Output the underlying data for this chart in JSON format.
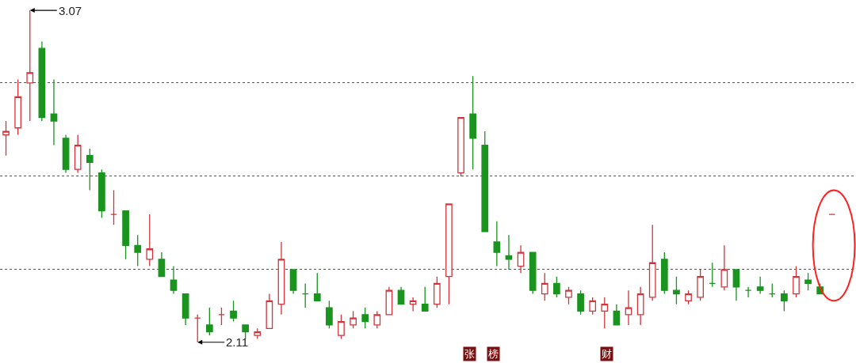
{
  "chart_data": {
    "type": "candlestick",
    "categories": [
      null,
      null,
      null,
      null,
      null,
      null,
      null,
      null,
      null,
      null,
      null,
      null,
      null,
      null,
      null,
      null,
      null,
      null,
      null,
      null,
      null,
      null,
      null,
      null,
      null,
      null,
      null,
      null,
      null,
      null,
      null,
      null,
      null,
      null,
      null,
      null,
      null,
      null,
      null,
      null,
      null,
      null,
      null,
      null,
      null,
      null,
      null,
      null,
      null,
      null,
      null,
      null,
      null,
      null,
      null,
      null,
      null,
      null,
      null,
      null,
      null,
      null,
      null,
      null,
      null,
      null,
      null,
      null,
      null,
      null
    ],
    "ohlc": [
      [
        2.71,
        2.75,
        2.65,
        2.72
      ],
      [
        2.73,
        2.87,
        2.71,
        2.82
      ],
      [
        2.86,
        3.07,
        2.75,
        2.89
      ],
      [
        2.96,
        2.98,
        2.75,
        2.76
      ],
      [
        2.77,
        2.87,
        2.68,
        2.75
      ],
      [
        2.7,
        2.71,
        2.6,
        2.61
      ],
      [
        2.61,
        2.71,
        2.6,
        2.68
      ],
      [
        2.65,
        2.67,
        2.55,
        2.63
      ],
      [
        2.6,
        2.61,
        2.47,
        2.49
      ],
      [
        2.48,
        2.55,
        2.45,
        2.48
      ],
      [
        2.49,
        2.49,
        2.35,
        2.39
      ],
      [
        2.39,
        2.42,
        2.33,
        2.37
      ],
      [
        2.35,
        2.48,
        2.33,
        2.38
      ],
      [
        2.35,
        2.37,
        2.3,
        2.3
      ],
      [
        2.29,
        2.33,
        2.25,
        2.26
      ],
      [
        2.25,
        2.25,
        2.16,
        2.18
      ],
      [
        2.18,
        2.19,
        2.11,
        2.18
      ],
      [
        2.16,
        2.21,
        2.13,
        2.14
      ],
      [
        2.19,
        2.21,
        2.16,
        2.19
      ],
      [
        2.2,
        2.23,
        2.17,
        2.18
      ],
      [
        2.16,
        2.16,
        2.12,
        2.14
      ],
      [
        2.13,
        2.15,
        2.12,
        2.14
      ],
      [
        2.15,
        2.25,
        2.15,
        2.23
      ],
      [
        2.22,
        2.4,
        2.19,
        2.35
      ],
      [
        2.32,
        2.32,
        2.25,
        2.26
      ],
      [
        2.25,
        2.28,
        2.21,
        2.25
      ],
      [
        2.25,
        2.31,
        2.23,
        2.23
      ],
      [
        2.21,
        2.23,
        2.15,
        2.16
      ],
      [
        2.13,
        2.19,
        2.12,
        2.17
      ],
      [
        2.16,
        2.2,
        2.15,
        2.18
      ],
      [
        2.19,
        2.21,
        2.15,
        2.17
      ],
      [
        2.16,
        2.2,
        2.15,
        2.19
      ],
      [
        2.19,
        2.27,
        2.19,
        2.26
      ],
      [
        2.26,
        2.27,
        2.22,
        2.22
      ],
      [
        2.22,
        2.24,
        2.2,
        2.23
      ],
      [
        2.22,
        2.27,
        2.2,
        2.2
      ],
      [
        2.22,
        2.3,
        2.21,
        2.28
      ],
      [
        2.3,
        2.51,
        2.22,
        2.51
      ],
      [
        2.6,
        2.76,
        2.59,
        2.76
      ],
      [
        2.77,
        2.88,
        2.61,
        2.7
      ],
      [
        2.68,
        2.72,
        2.43,
        2.43
      ],
      [
        2.4,
        2.46,
        2.33,
        2.37
      ],
      [
        2.36,
        2.42,
        2.32,
        2.35
      ],
      [
        2.33,
        2.39,
        2.31,
        2.37
      ],
      [
        2.37,
        2.37,
        2.25,
        2.26
      ],
      [
        2.25,
        2.31,
        2.23,
        2.28
      ],
      [
        2.28,
        2.3,
        2.24,
        2.25
      ],
      [
        2.24,
        2.27,
        2.22,
        2.26
      ],
      [
        2.25,
        2.26,
        2.19,
        2.2
      ],
      [
        2.2,
        2.24,
        2.19,
        2.23
      ],
      [
        2.2,
        2.24,
        2.15,
        2.22
      ],
      [
        2.2,
        2.22,
        2.16,
        2.16
      ],
      [
        2.19,
        2.26,
        2.16,
        2.21
      ],
      [
        2.19,
        2.27,
        2.16,
        2.25
      ],
      [
        2.24,
        2.45,
        2.23,
        2.34
      ],
      [
        2.35,
        2.37,
        2.25,
        2.26
      ],
      [
        2.26,
        2.3,
        2.22,
        2.25
      ],
      [
        2.23,
        2.26,
        2.22,
        2.25
      ],
      [
        2.24,
        2.32,
        2.23,
        2.3
      ],
      [
        2.28,
        2.34,
        2.27,
        2.28
      ],
      [
        2.27,
        2.39,
        2.26,
        2.32
      ],
      [
        2.32,
        2.32,
        2.23,
        2.27
      ],
      [
        2.26,
        2.27,
        2.24,
        2.26
      ],
      [
        2.27,
        2.3,
        2.25,
        2.26
      ],
      [
        2.25,
        2.28,
        2.24,
        2.25
      ],
      [
        2.25,
        2.26,
        2.2,
        2.23
      ],
      [
        2.25,
        2.33,
        2.24,
        2.3
      ],
      [
        2.29,
        2.31,
        2.26,
        2.28
      ],
      [
        2.27,
        2.28,
        2.25,
        2.25
      ],
      [
        2.48,
        2.48,
        2.48,
        2.48
      ]
    ],
    "colors": [
      "#d4333b",
      "#d4333b",
      "#d4333b",
      "#1a941f",
      "#1a941f",
      "#1a941f",
      "#d4333b",
      "#1a941f",
      "#1a941f",
      "#d4333b",
      "#1a941f",
      "#1a941f",
      "#d4333b",
      "#1a941f",
      "#1a941f",
      "#1a941f",
      "#d4333b",
      "#1a941f",
      "#d4333b",
      "#1a941f",
      "#1a941f",
      "#d4333b",
      "#d4333b",
      "#d4333b",
      "#1a941f",
      "#1a941f",
      "#1a941f",
      "#1a941f",
      "#d4333b",
      "#d4333b",
      "#1a941f",
      "#d4333b",
      "#d4333b",
      "#1a941f",
      "#d4333b",
      "#1a941f",
      "#d4333b",
      "#d4333b",
      "#d4333b",
      "#1a941f",
      "#1a941f",
      "#1a941f",
      "#1a941f",
      "#d4333b",
      "#1a941f",
      "#d4333b",
      "#1a941f",
      "#d4333b",
      "#1a941f",
      "#d4333b",
      "#d4333b",
      "#1a941f",
      "#d4333b",
      "#d4333b",
      "#d4333b",
      "#1a941f",
      "#1a941f",
      "#d4333b",
      "#d4333b",
      "#1a941f",
      "#d4333b",
      "#1a941f",
      "#1a941f",
      "#1a941f",
      "#1a941f",
      "#1a941f",
      "#d4333b",
      "#1a941f",
      "#1a941f",
      "#d4333b"
    ],
    "ylim": [
      2.05,
      3.1
    ],
    "yticks": [
      {
        "value": 2.32,
        "label": null
      },
      {
        "value": 2.59,
        "label": null
      },
      {
        "value": 2.86,
        "label": null
      }
    ],
    "grid": "y",
    "annotations": [
      "3.07",
      "2.11",
      "张",
      "榜",
      "财"
    ]
  }
}
